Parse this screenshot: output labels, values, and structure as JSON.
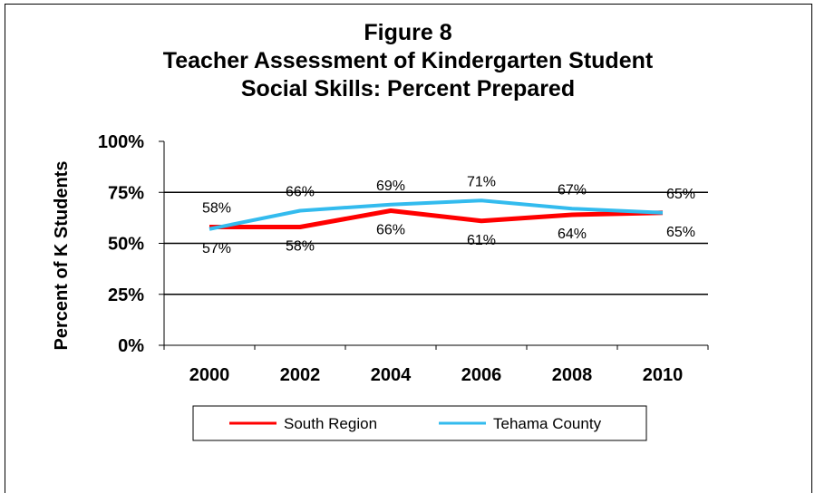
{
  "colors": {
    "south": "#ff0000",
    "tehama": "#33bbee",
    "axis": "#000000"
  },
  "chart_data": {
    "type": "line",
    "title_lines": [
      "Figure 8",
      "Teacher Assessment of Kindergarten Student",
      "Social Skills: Percent Prepared"
    ],
    "ylabel": "Percent of K Students",
    "xlabel": "",
    "ylim": [
      0,
      100
    ],
    "yticks": [
      "0%",
      "25%",
      "50%",
      "75%",
      "100%"
    ],
    "ytick_values": [
      0,
      25,
      50,
      75,
      100
    ],
    "categories": [
      "2000",
      "2002",
      "2004",
      "2006",
      "2008",
      "2010"
    ],
    "grid": true,
    "legend": "bottom",
    "series": [
      {
        "name": "South Region",
        "color": "#ff0000",
        "values": [
          58,
          58,
          66,
          61,
          64,
          65
        ],
        "labels": [
          "58%",
          "58%",
          "66%",
          "61%",
          "64%",
          "65%"
        ]
      },
      {
        "name": "Tehama County",
        "color": "#33bbee",
        "values": [
          57,
          66,
          69,
          71,
          67,
          65
        ],
        "labels": [
          "57%",
          "66%",
          "69%",
          "71%",
          "67%",
          "65%"
        ]
      }
    ]
  }
}
